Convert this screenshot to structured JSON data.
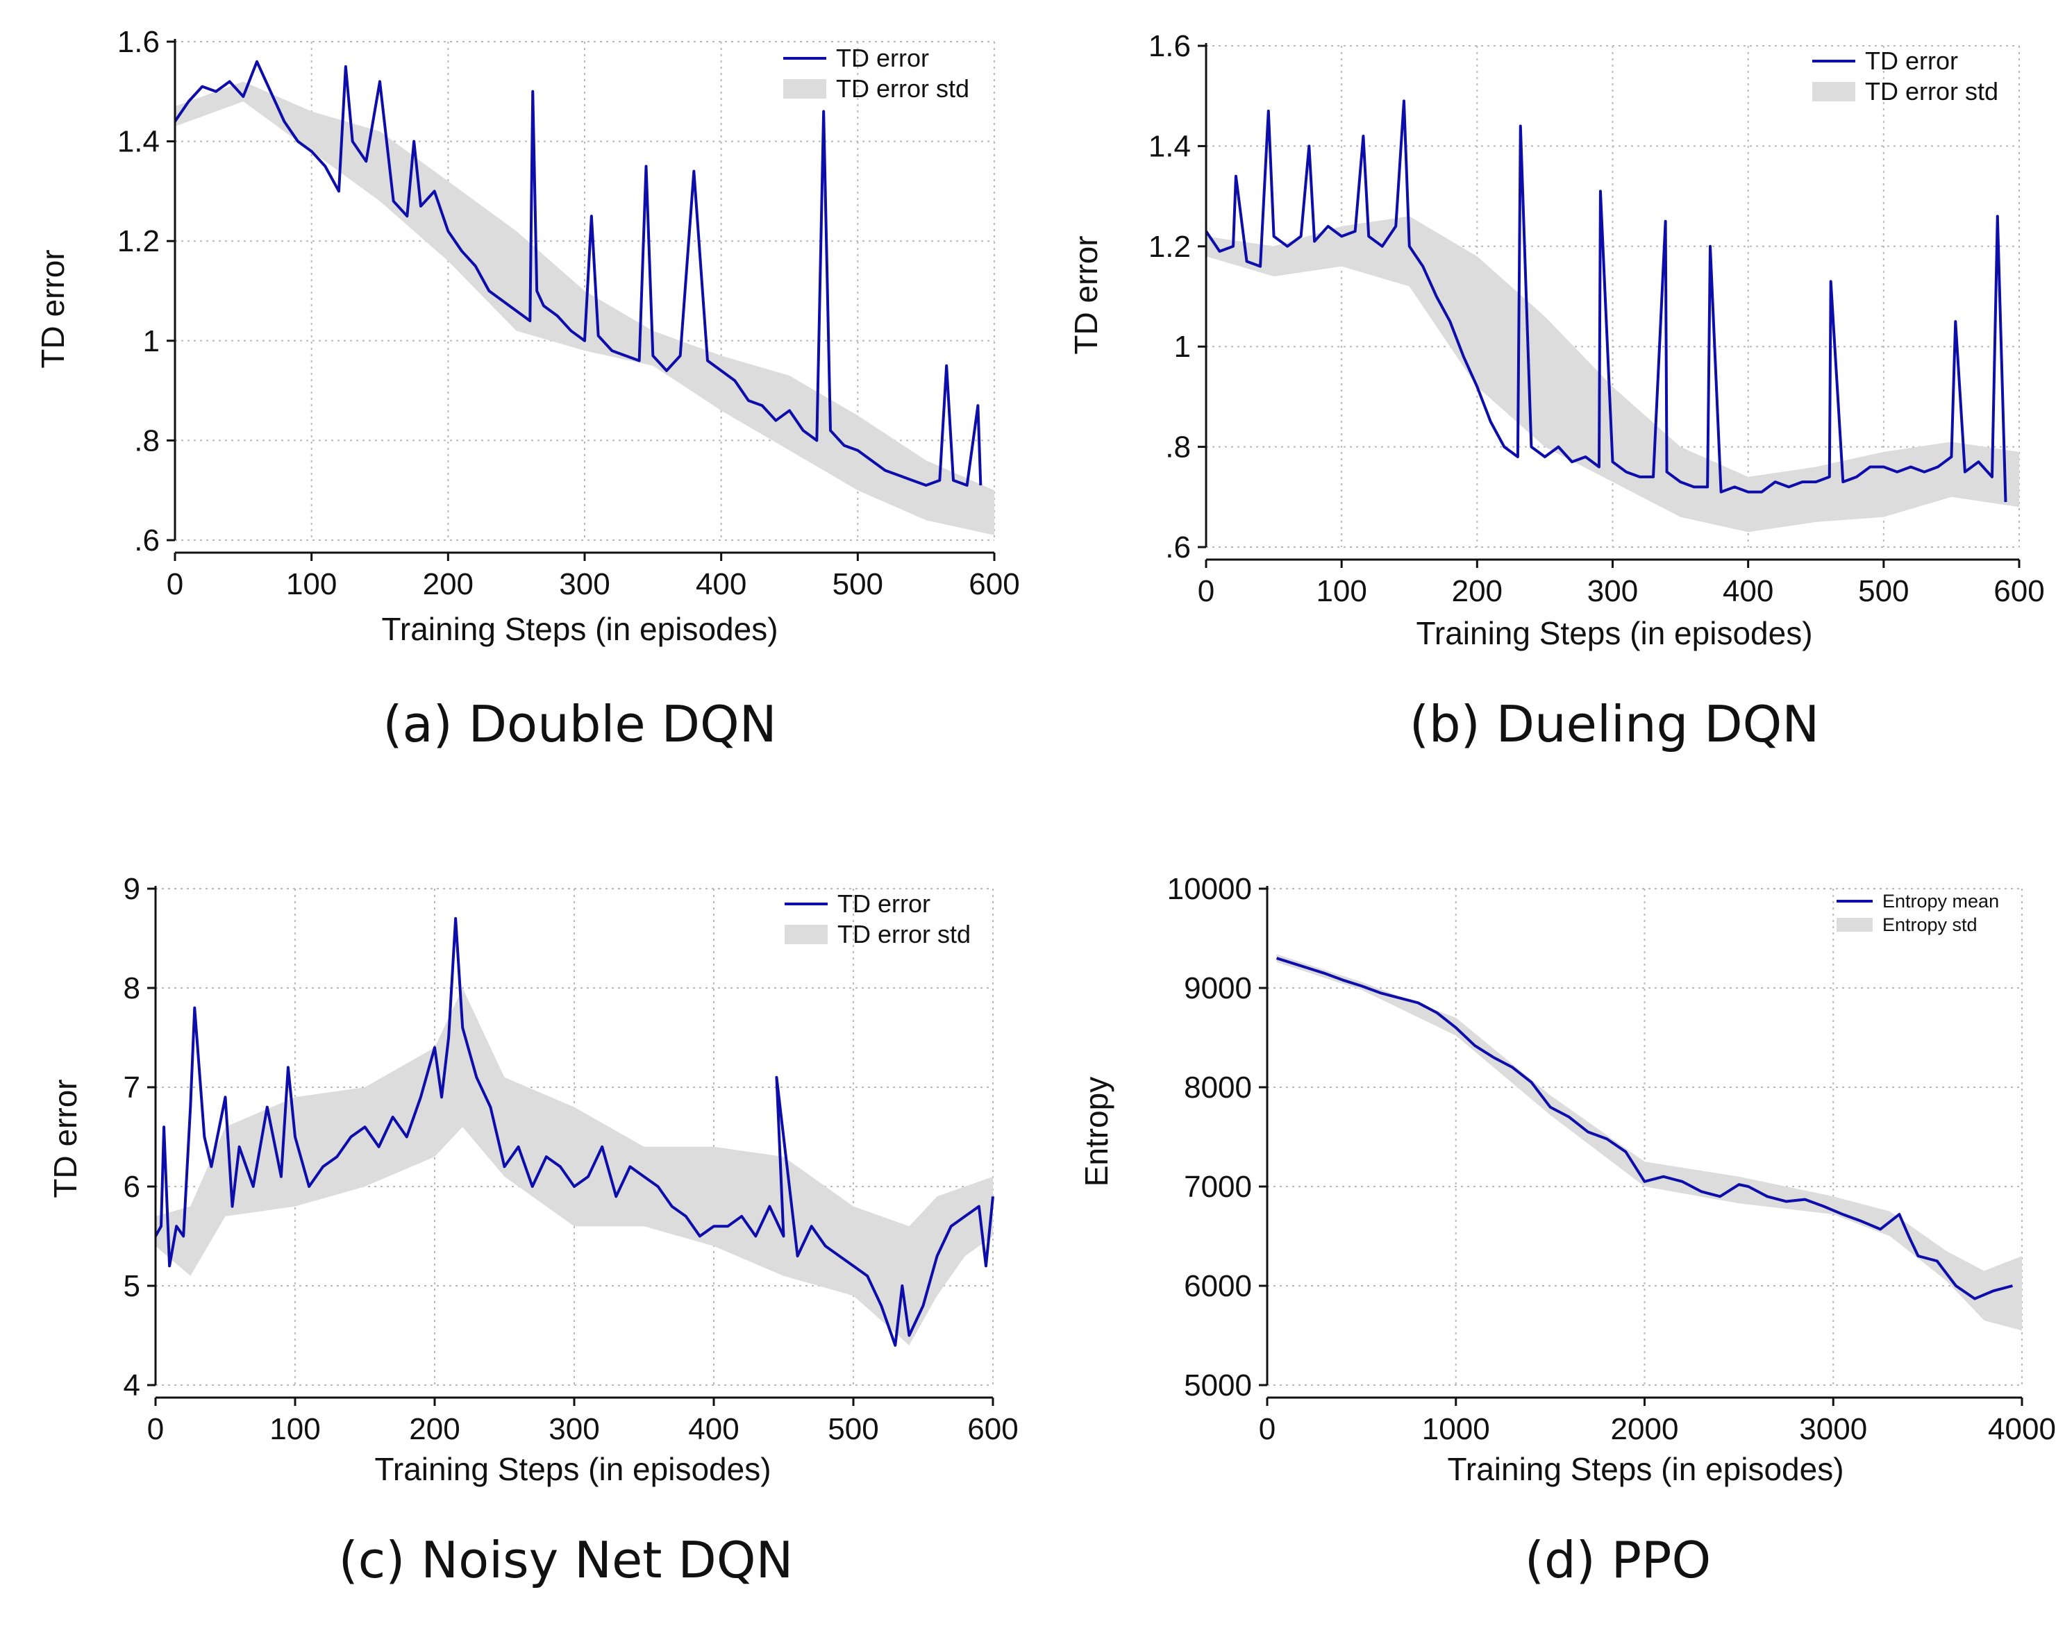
{
  "chart_data": [
    {
      "id": "a",
      "type": "line",
      "caption": "(a) Double DQN",
      "xlabel": "Training Steps (in episodes)",
      "ylabel": "TD error",
      "xlim": [
        0,
        600
      ],
      "ylim": [
        0.6,
        1.6
      ],
      "xticks": [
        0,
        100,
        200,
        300,
        400,
        500,
        600
      ],
      "yticks": [
        0.6,
        0.8,
        1.0,
        1.2,
        1.4,
        1.6
      ],
      "ytick_labels": [
        ".6",
        ".8",
        "1",
        "1.2",
        "1.4",
        "1.6"
      ],
      "legend": {
        "position": "top-right",
        "entries": [
          "TD error",
          "TD error std"
        ]
      },
      "legend_style": "large",
      "series": [
        {
          "name": "TD error",
          "kind": "line",
          "x": [
            0,
            10,
            20,
            30,
            40,
            50,
            60,
            70,
            80,
            90,
            100,
            110,
            120,
            125,
            130,
            140,
            150,
            160,
            170,
            175,
            180,
            190,
            200,
            210,
            220,
            230,
            240,
            250,
            260,
            262,
            265,
            270,
            280,
            290,
            300,
            305,
            310,
            320,
            330,
            340,
            345,
            350,
            360,
            370,
            380,
            390,
            400,
            410,
            420,
            430,
            440,
            450,
            460,
            470,
            475,
            480,
            490,
            500,
            510,
            520,
            530,
            540,
            550,
            560,
            565,
            570,
            580,
            588,
            590
          ],
          "y": [
            1.44,
            1.48,
            1.51,
            1.5,
            1.52,
            1.49,
            1.56,
            1.5,
            1.44,
            1.4,
            1.38,
            1.35,
            1.3,
            1.55,
            1.4,
            1.36,
            1.52,
            1.28,
            1.25,
            1.4,
            1.27,
            1.3,
            1.22,
            1.18,
            1.15,
            1.1,
            1.08,
            1.06,
            1.04,
            1.5,
            1.1,
            1.07,
            1.05,
            1.02,
            1.0,
            1.25,
            1.01,
            0.98,
            0.97,
            0.96,
            1.35,
            0.97,
            0.94,
            0.97,
            1.34,
            0.96,
            0.94,
            0.92,
            0.88,
            0.87,
            0.84,
            0.86,
            0.82,
            0.8,
            1.46,
            0.82,
            0.79,
            0.78,
            0.76,
            0.74,
            0.73,
            0.72,
            0.71,
            0.72,
            0.95,
            0.72,
            0.71,
            0.87,
            0.71
          ]
        },
        {
          "name": "TD error std",
          "kind": "band",
          "x": [
            0,
            50,
            100,
            150,
            200,
            250,
            300,
            350,
            400,
            450,
            500,
            550,
            600
          ],
          "lower": [
            1.43,
            1.48,
            1.38,
            1.28,
            1.16,
            1.02,
            0.98,
            0.95,
            0.86,
            0.78,
            0.7,
            0.64,
            0.61
          ],
          "upper": [
            1.47,
            1.52,
            1.46,
            1.42,
            1.32,
            1.22,
            1.1,
            1.02,
            0.97,
            0.93,
            0.85,
            0.76,
            0.7
          ]
        }
      ]
    },
    {
      "id": "b",
      "type": "line",
      "caption": "(b) Dueling DQN",
      "xlabel": "Training Steps (in episodes)",
      "ylabel": "TD error",
      "xlim": [
        0,
        600
      ],
      "ylim": [
        0.6,
        1.6
      ],
      "xticks": [
        0,
        100,
        200,
        300,
        400,
        500,
        600
      ],
      "yticks": [
        0.6,
        0.8,
        1.0,
        1.2,
        1.4,
        1.6
      ],
      "ytick_labels": [
        ".6",
        ".8",
        "1",
        "1.2",
        "1.4",
        "1.6"
      ],
      "legend": {
        "position": "top-right",
        "entries": [
          "TD error",
          "TD error std"
        ]
      },
      "legend_style": "large",
      "series": [
        {
          "name": "TD error",
          "kind": "line",
          "x": [
            0,
            10,
            20,
            22,
            30,
            40,
            46,
            50,
            60,
            70,
            76,
            80,
            90,
            100,
            110,
            116,
            120,
            130,
            140,
            146,
            150,
            160,
            170,
            180,
            190,
            200,
            210,
            220,
            230,
            232,
            240,
            250,
            260,
            270,
            280,
            290,
            291,
            300,
            310,
            320,
            330,
            339,
            340,
            350,
            360,
            370,
            372,
            380,
            390,
            400,
            410,
            420,
            430,
            440,
            450,
            460,
            461,
            470,
            480,
            490,
            500,
            510,
            520,
            530,
            540,
            550,
            553,
            560,
            570,
            580,
            584,
            590
          ],
          "y": [
            1.23,
            1.19,
            1.2,
            1.34,
            1.17,
            1.16,
            1.47,
            1.22,
            1.2,
            1.22,
            1.4,
            1.21,
            1.24,
            1.22,
            1.23,
            1.42,
            1.22,
            1.2,
            1.24,
            1.49,
            1.2,
            1.16,
            1.1,
            1.05,
            0.98,
            0.92,
            0.85,
            0.8,
            0.78,
            1.44,
            0.8,
            0.78,
            0.8,
            0.77,
            0.78,
            0.76,
            1.31,
            0.77,
            0.75,
            0.74,
            0.74,
            1.25,
            0.75,
            0.73,
            0.72,
            0.72,
            1.2,
            0.71,
            0.72,
            0.71,
            0.71,
            0.73,
            0.72,
            0.73,
            0.73,
            0.74,
            1.13,
            0.73,
            0.74,
            0.76,
            0.76,
            0.75,
            0.76,
            0.75,
            0.76,
            0.78,
            1.05,
            0.75,
            0.77,
            0.74,
            1.26,
            0.69
          ]
        },
        {
          "name": "TD error std",
          "kind": "band",
          "x": [
            0,
            50,
            100,
            150,
            200,
            250,
            300,
            350,
            400,
            450,
            500,
            550,
            600
          ],
          "lower": [
            1.18,
            1.14,
            1.16,
            1.12,
            0.92,
            0.8,
            0.73,
            0.66,
            0.63,
            0.65,
            0.66,
            0.7,
            0.68
          ],
          "upper": [
            1.22,
            1.2,
            1.24,
            1.26,
            1.18,
            1.06,
            0.92,
            0.8,
            0.74,
            0.76,
            0.79,
            0.81,
            0.79
          ]
        }
      ]
    },
    {
      "id": "c",
      "type": "line",
      "caption": "(c) Noisy Net DQN",
      "xlabel": "Training Steps (in episodes)",
      "ylabel": "TD error",
      "xlim": [
        0,
        600
      ],
      "ylim": [
        4,
        9
      ],
      "xticks": [
        0,
        100,
        200,
        300,
        400,
        500,
        600
      ],
      "yticks": [
        4,
        5,
        6,
        7,
        8,
        9
      ],
      "ytick_labels": [
        "4",
        "5",
        "6",
        "7",
        "8",
        "9"
      ],
      "legend": {
        "position": "top-right",
        "entries": [
          "TD error",
          "TD error std"
        ]
      },
      "legend_style": "large",
      "series": [
        {
          "name": "TD error",
          "kind": "line",
          "x": [
            0,
            4,
            6,
            10,
            15,
            20,
            25,
            28,
            35,
            40,
            50,
            55,
            60,
            70,
            80,
            90,
            95,
            100,
            110,
            120,
            130,
            140,
            150,
            160,
            170,
            180,
            190,
            200,
            205,
            210,
            215,
            220,
            230,
            240,
            250,
            260,
            270,
            280,
            290,
            300,
            310,
            320,
            330,
            340,
            350,
            360,
            370,
            380,
            390,
            400,
            410,
            420,
            430,
            440,
            450,
            445,
            460,
            470,
            480,
            490,
            500,
            510,
            520,
            525,
            530,
            535,
            540,
            550,
            560,
            570,
            580,
            590,
            595,
            600
          ],
          "y": [
            5.5,
            5.6,
            6.6,
            5.2,
            5.6,
            5.5,
            6.8,
            7.8,
            6.5,
            6.2,
            6.9,
            5.8,
            6.4,
            6.0,
            6.8,
            6.1,
            7.2,
            6.5,
            6.0,
            6.2,
            6.3,
            6.5,
            6.6,
            6.4,
            6.7,
            6.5,
            6.9,
            7.4,
            6.9,
            7.5,
            8.7,
            7.6,
            7.1,
            6.8,
            6.2,
            6.4,
            6.0,
            6.3,
            6.2,
            6.0,
            6.1,
            6.4,
            5.9,
            6.2,
            6.1,
            6.0,
            5.8,
            5.7,
            5.5,
            5.6,
            5.6,
            5.7,
            5.5,
            5.8,
            5.5,
            7.1,
            5.3,
            5.6,
            5.4,
            5.3,
            5.2,
            5.1,
            4.8,
            4.6,
            4.4,
            5.0,
            4.5,
            4.8,
            5.3,
            5.6,
            5.7,
            5.8,
            5.2,
            5.9
          ]
        },
        {
          "name": "TD error std",
          "kind": "band",
          "x": [
            0,
            25,
            50,
            100,
            150,
            200,
            220,
            250,
            300,
            350,
            400,
            450,
            500,
            540,
            560,
            580,
            600
          ],
          "lower": [
            5.4,
            5.1,
            5.7,
            5.8,
            6.0,
            6.3,
            6.6,
            6.1,
            5.6,
            5.6,
            5.4,
            5.1,
            4.9,
            4.4,
            4.9,
            5.3,
            5.5
          ],
          "upper": [
            5.7,
            5.8,
            6.6,
            6.9,
            7.0,
            7.4,
            8.0,
            7.1,
            6.8,
            6.4,
            6.4,
            6.3,
            5.8,
            5.6,
            5.9,
            6.0,
            6.1
          ]
        }
      ]
    },
    {
      "id": "d",
      "type": "line",
      "caption": "(d) PPO",
      "xlabel": "Training Steps (in episodes)",
      "ylabel": "Entropy",
      "xlim": [
        0,
        4000
      ],
      "ylim": [
        5000,
        10000
      ],
      "xticks": [
        0,
        1000,
        2000,
        3000,
        4000
      ],
      "yticks": [
        5000,
        6000,
        7000,
        8000,
        9000,
        10000
      ],
      "ytick_labels": [
        "5000",
        "6000",
        "7000",
        "8000",
        "9000",
        "10000"
      ],
      "legend": {
        "position": "top-right",
        "entries": [
          "Entropy mean",
          "Entropy std"
        ]
      },
      "legend_style": "small",
      "series": [
        {
          "name": "Entropy mean",
          "kind": "line",
          "x": [
            50,
            150,
            300,
            400,
            500,
            600,
            700,
            800,
            900,
            1000,
            1100,
            1200,
            1300,
            1400,
            1500,
            1600,
            1700,
            1800,
            1900,
            2000,
            2100,
            2200,
            2300,
            2400,
            2500,
            2550,
            2650,
            2750,
            2850,
            2950,
            3050,
            3150,
            3250,
            3350,
            3400,
            3450,
            3550,
            3650,
            3750,
            3850,
            3950
          ],
          "y": [
            9300,
            9240,
            9150,
            9080,
            9020,
            8950,
            8900,
            8850,
            8750,
            8600,
            8420,
            8300,
            8200,
            8050,
            7800,
            7700,
            7550,
            7480,
            7350,
            7050,
            7100,
            7050,
            6950,
            6900,
            7020,
            7000,
            6900,
            6850,
            6870,
            6800,
            6720,
            6650,
            6570,
            6720,
            6500,
            6300,
            6250,
            6000,
            5870,
            5950,
            6000
          ]
        },
        {
          "name": "Entropy std",
          "kind": "band",
          "x": [
            50,
            500,
            1000,
            1500,
            2000,
            2500,
            3000,
            3300,
            3600,
            3800,
            4000
          ],
          "lower": [
            9260,
            8980,
            8520,
            7720,
            7000,
            6830,
            6720,
            6500,
            6050,
            5650,
            5550
          ],
          "upper": [
            9340,
            9060,
            8700,
            7920,
            7250,
            7100,
            6900,
            6750,
            6350,
            6150,
            6300
          ]
        }
      ]
    }
  ]
}
